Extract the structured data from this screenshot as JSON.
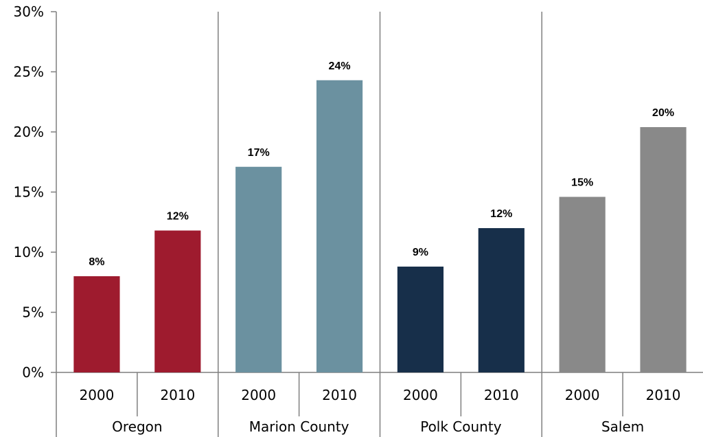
{
  "chart_data": {
    "type": "bar",
    "ylim": [
      0,
      30
    ],
    "yticks": [
      0,
      5,
      10,
      15,
      20,
      25,
      30
    ],
    "ytick_labels": [
      "0%",
      "5%",
      "10%",
      "15%",
      "20%",
      "25%",
      "30%"
    ],
    "groups": [
      {
        "name": "Oregon",
        "color": "#9e1b2e",
        "bars": [
          {
            "category": "2000",
            "value": 8,
            "label": "8%"
          },
          {
            "category": "2010",
            "value": 11.8,
            "label": "12%"
          }
        ]
      },
      {
        "name": "Marion County",
        "color": "#6b91a0",
        "bars": [
          {
            "category": "2000",
            "value": 17.1,
            "label": "17%"
          },
          {
            "category": "2010",
            "value": 24.3,
            "label": "24%"
          }
        ]
      },
      {
        "name": "Polk County",
        "color": "#172f4a",
        "bars": [
          {
            "category": "2000",
            "value": 8.8,
            "label": "9%"
          },
          {
            "category": "2010",
            "value": 12,
            "label": "12%"
          }
        ]
      },
      {
        "name": "Salem",
        "color": "#898989",
        "bars": [
          {
            "category": "2000",
            "value": 14.6,
            "label": "15%"
          },
          {
            "category": "2010",
            "value": 20.4,
            "label": "20%"
          }
        ]
      }
    ],
    "grid": false,
    "legend": "none"
  }
}
